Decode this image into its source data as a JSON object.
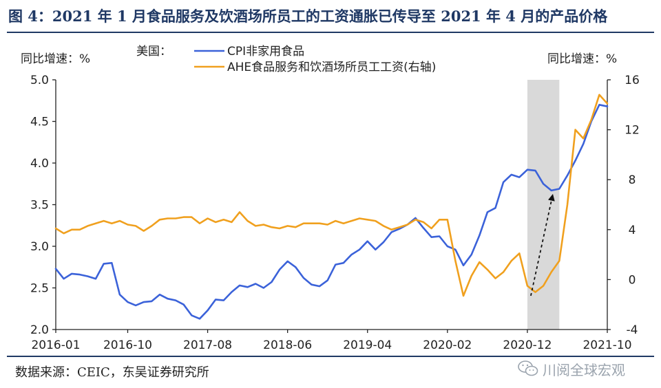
{
  "title": "图 4：2021 年 1 月食品服务及饮酒场所员工的工资通胀已传导至 2021 年 4 月的产品价格",
  "source": "数据来源：CEIC，东吴证券研究所",
  "watermark": "川阅全球宏观",
  "watermark_icon": "wechat-icon",
  "colors": {
    "cpi": "#3b62d9",
    "ahe": "#f0a01e",
    "shade": "#d9d9d9",
    "arrow": "#111111",
    "title": "#1f3864"
  },
  "chart_data": {
    "type": "line",
    "legend_title": "美国：",
    "legend_position": "top-left",
    "left_unit": "同比增速：%",
    "right_unit": "同比增速：%",
    "grid": false,
    "x_labels": [
      "2016-01",
      "2016-10",
      "2017-08",
      "2018-06",
      "2019-04",
      "2020-02",
      "2020-12",
      "2021-10"
    ],
    "x_range": [
      "2016-01",
      "2021-10"
    ],
    "left_axis": {
      "ylim": [
        2.0,
        5.0
      ],
      "ticks": [
        "2.0",
        "2.5",
        "3.0",
        "3.5",
        "4.0",
        "4.5",
        "5.0"
      ]
    },
    "right_axis": {
      "ylim": [
        -4,
        16
      ],
      "ticks": [
        "-4",
        "0",
        "4",
        "8",
        "12",
        "16"
      ]
    },
    "shaded_range": [
      "2020-12",
      "2021-04"
    ],
    "arrow": {
      "from": [
        "2020-12",
        -1.3
      ],
      "to": [
        "2021-04",
        6.7
      ],
      "axis": "right"
    },
    "series": [
      {
        "name": "CPI非家用食品",
        "axis": "left",
        "points": [
          [
            "2016-01",
            2.73
          ],
          [
            "2016-02",
            2.61
          ],
          [
            "2016-03",
            2.67
          ],
          [
            "2016-04",
            2.66
          ],
          [
            "2016-05",
            2.64
          ],
          [
            "2016-06",
            2.61
          ],
          [
            "2016-07",
            2.79
          ],
          [
            "2016-08",
            2.8
          ],
          [
            "2016-09",
            2.42
          ],
          [
            "2016-10",
            2.33
          ],
          [
            "2016-11",
            2.29
          ],
          [
            "2016-12",
            2.33
          ],
          [
            "2017-01",
            2.34
          ],
          [
            "2017-02",
            2.42
          ],
          [
            "2017-03",
            2.37
          ],
          [
            "2017-04",
            2.35
          ],
          [
            "2017-05",
            2.3
          ],
          [
            "2017-06",
            2.17
          ],
          [
            "2017-07",
            2.13
          ],
          [
            "2017-08",
            2.23
          ],
          [
            "2017-09",
            2.36
          ],
          [
            "2017-10",
            2.35
          ],
          [
            "2017-11",
            2.45
          ],
          [
            "2017-12",
            2.53
          ],
          [
            "2018-01",
            2.51
          ],
          [
            "2018-02",
            2.55
          ],
          [
            "2018-03",
            2.5
          ],
          [
            "2018-04",
            2.57
          ],
          [
            "2018-05",
            2.72
          ],
          [
            "2018-06",
            2.82
          ],
          [
            "2018-07",
            2.75
          ],
          [
            "2018-08",
            2.62
          ],
          [
            "2018-09",
            2.54
          ],
          [
            "2018-10",
            2.52
          ],
          [
            "2018-11",
            2.59
          ],
          [
            "2018-12",
            2.78
          ],
          [
            "2019-01",
            2.8
          ],
          [
            "2019-02",
            2.9
          ],
          [
            "2019-03",
            2.96
          ],
          [
            "2019-04",
            3.06
          ],
          [
            "2019-05",
            2.96
          ],
          [
            "2019-06",
            3.05
          ],
          [
            "2019-07",
            3.17
          ],
          [
            "2019-08",
            3.21
          ],
          [
            "2019-09",
            3.26
          ],
          [
            "2019-10",
            3.34
          ],
          [
            "2019-11",
            3.22
          ],
          [
            "2019-12",
            3.11
          ],
          [
            "2020-01",
            3.12
          ],
          [
            "2020-02",
            3.0
          ],
          [
            "2020-03",
            2.96
          ],
          [
            "2020-04",
            2.77
          ],
          [
            "2020-05",
            2.9
          ],
          [
            "2020-06",
            3.13
          ],
          [
            "2020-07",
            3.41
          ],
          [
            "2020-08",
            3.46
          ],
          [
            "2020-09",
            3.77
          ],
          [
            "2020-10",
            3.86
          ],
          [
            "2020-11",
            3.83
          ],
          [
            "2020-12",
            3.92
          ],
          [
            "2021-01",
            3.91
          ],
          [
            "2021-02",
            3.75
          ],
          [
            "2021-03",
            3.67
          ],
          [
            "2021-04",
            3.69
          ],
          [
            "2021-05",
            3.85
          ],
          [
            "2021-06",
            4.03
          ],
          [
            "2021-07",
            4.23
          ],
          [
            "2021-08",
            4.5
          ],
          [
            "2021-09",
            4.7
          ],
          [
            "2021-10",
            4.68
          ]
        ]
      },
      {
        "name": "AHE食品服务和饮酒场所员工工资(右轴)",
        "axis": "right",
        "points": [
          [
            "2016-01",
            4.1
          ],
          [
            "2016-02",
            3.7
          ],
          [
            "2016-03",
            4.0
          ],
          [
            "2016-04",
            4.0
          ],
          [
            "2016-05",
            4.3
          ],
          [
            "2016-06",
            4.5
          ],
          [
            "2016-07",
            4.7
          ],
          [
            "2016-08",
            4.5
          ],
          [
            "2016-09",
            4.7
          ],
          [
            "2016-10",
            4.4
          ],
          [
            "2016-11",
            4.3
          ],
          [
            "2016-12",
            3.9
          ],
          [
            "2017-01",
            4.3
          ],
          [
            "2017-02",
            4.8
          ],
          [
            "2017-03",
            4.9
          ],
          [
            "2017-04",
            4.9
          ],
          [
            "2017-05",
            5.0
          ],
          [
            "2017-06",
            5.0
          ],
          [
            "2017-07",
            4.5
          ],
          [
            "2017-08",
            4.9
          ],
          [
            "2017-09",
            4.6
          ],
          [
            "2017-10",
            4.8
          ],
          [
            "2017-11",
            4.6
          ],
          [
            "2017-12",
            5.4
          ],
          [
            "2018-01",
            4.7
          ],
          [
            "2018-02",
            4.3
          ],
          [
            "2018-03",
            4.4
          ],
          [
            "2018-04",
            4.2
          ],
          [
            "2018-05",
            4.1
          ],
          [
            "2018-06",
            4.3
          ],
          [
            "2018-07",
            4.2
          ],
          [
            "2018-08",
            4.5
          ],
          [
            "2018-09",
            4.5
          ],
          [
            "2018-10",
            4.5
          ],
          [
            "2018-11",
            4.4
          ],
          [
            "2018-12",
            4.7
          ],
          [
            "2019-01",
            4.5
          ],
          [
            "2019-02",
            4.7
          ],
          [
            "2019-03",
            4.9
          ],
          [
            "2019-04",
            4.8
          ],
          [
            "2019-05",
            4.7
          ],
          [
            "2019-06",
            4.3
          ],
          [
            "2019-07",
            4.0
          ],
          [
            "2019-08",
            4.2
          ],
          [
            "2019-09",
            4.4
          ],
          [
            "2019-10",
            4.8
          ],
          [
            "2019-11",
            4.6
          ],
          [
            "2019-12",
            4.1
          ],
          [
            "2020-01",
            4.8
          ],
          [
            "2020-02",
            4.8
          ],
          [
            "2020-03",
            1.5
          ],
          [
            "2020-04",
            -1.3
          ],
          [
            "2020-05",
            0.3
          ],
          [
            "2020-06",
            1.4
          ],
          [
            "2020-07",
            0.8
          ],
          [
            "2020-08",
            0.1
          ],
          [
            "2020-09",
            0.6
          ],
          [
            "2020-10",
            1.5
          ],
          [
            "2020-11",
            2.1
          ],
          [
            "2020-12",
            -0.5
          ],
          [
            "2021-01",
            -1.0
          ],
          [
            "2021-02",
            -0.5
          ],
          [
            "2021-03",
            0.6
          ],
          [
            "2021-04",
            1.5
          ],
          [
            "2021-05",
            6.0
          ],
          [
            "2021-06",
            12.0
          ],
          [
            "2021-07",
            11.3
          ],
          [
            "2021-08",
            12.8
          ],
          [
            "2021-09",
            14.8
          ],
          [
            "2021-10",
            14.1
          ]
        ]
      }
    ]
  }
}
